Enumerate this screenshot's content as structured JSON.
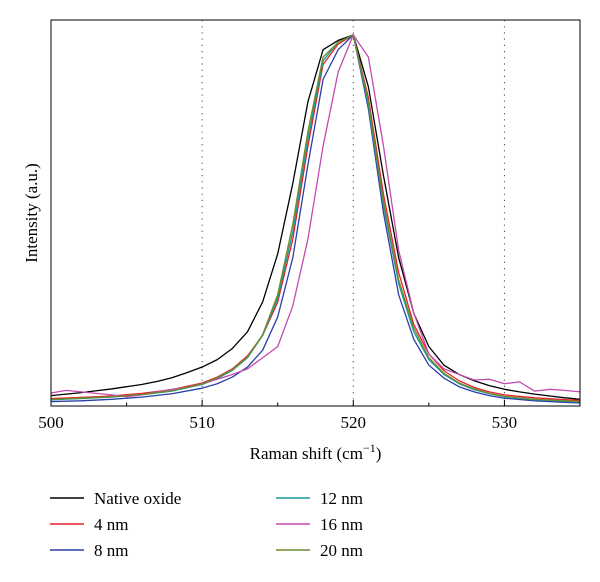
{
  "chart_data": {
    "type": "line",
    "title": "",
    "xlabel": "Raman shift (cm",
    "xlabel_sup": "−1",
    "xlabel_close": ")",
    "ylabel": "Intensity (a.u.)",
    "xlim": [
      500,
      535
    ],
    "ylim": [
      0,
      1.04
    ],
    "xticks": [
      500,
      510,
      520,
      530
    ],
    "xtick_labels": [
      "500",
      "510",
      "520",
      "530"
    ],
    "yticks_shown": false,
    "grid": "vertical dotted lines at 510, 520, 530",
    "legend_position": "below plot, two columns",
    "series": [
      {
        "name": "Native oxide",
        "color": "#000000",
        "x": [
          500,
          501,
          502,
          503,
          504,
          505,
          506,
          507,
          508,
          509,
          510,
          511,
          512,
          513,
          514,
          515,
          516,
          517,
          518,
          519,
          520,
          521,
          522,
          523,
          524,
          525,
          526,
          527,
          528,
          529,
          530,
          531,
          532,
          533,
          534,
          535
        ],
        "y": [
          0.028,
          0.032,
          0.036,
          0.041,
          0.046,
          0.052,
          0.058,
          0.066,
          0.076,
          0.09,
          0.105,
          0.125,
          0.155,
          0.2,
          0.28,
          0.41,
          0.6,
          0.82,
          0.96,
          0.985,
          1.0,
          0.86,
          0.62,
          0.4,
          0.25,
          0.16,
          0.11,
          0.085,
          0.068,
          0.055,
          0.045,
          0.038,
          0.032,
          0.027,
          0.022,
          0.018
        ]
      },
      {
        "name": "4 nm",
        "color": "#e8202a",
        "x": [
          500,
          502,
          504,
          506,
          508,
          510,
          511,
          512,
          513,
          514,
          515,
          516,
          517,
          518,
          519,
          520,
          521,
          522,
          523,
          524,
          525,
          526,
          527,
          528,
          529,
          530,
          532,
          534,
          535
        ],
        "y": [
          0.02,
          0.023,
          0.027,
          0.034,
          0.044,
          0.062,
          0.078,
          0.1,
          0.135,
          0.19,
          0.28,
          0.45,
          0.7,
          0.92,
          0.975,
          1.0,
          0.83,
          0.57,
          0.36,
          0.22,
          0.14,
          0.095,
          0.068,
          0.05,
          0.038,
          0.03,
          0.022,
          0.017,
          0.015
        ]
      },
      {
        "name": "8 nm",
        "color": "#2a3fa8",
        "x": [
          500,
          502,
          504,
          506,
          508,
          510,
          511,
          512,
          513,
          514,
          515,
          516,
          517,
          518,
          519,
          520,
          521,
          522,
          523,
          524,
          525,
          526,
          527,
          528,
          529,
          530,
          532,
          534,
          535
        ],
        "y": [
          0.012,
          0.014,
          0.018,
          0.024,
          0.033,
          0.048,
          0.06,
          0.078,
          0.105,
          0.15,
          0.24,
          0.4,
          0.65,
          0.88,
          0.96,
          1.0,
          0.8,
          0.52,
          0.3,
          0.18,
          0.11,
          0.075,
          0.052,
          0.038,
          0.028,
          0.021,
          0.014,
          0.01,
          0.008
        ]
      },
      {
        "name": "12 nm",
        "color": "#169c9c",
        "x": [
          500,
          502,
          504,
          506,
          508,
          510,
          511,
          512,
          513,
          514,
          515,
          516,
          517,
          518,
          519,
          520,
          521,
          522,
          523,
          524,
          525,
          526,
          527,
          528,
          529,
          530,
          532,
          534,
          535
        ],
        "y": [
          0.017,
          0.02,
          0.024,
          0.03,
          0.04,
          0.058,
          0.074,
          0.096,
          0.13,
          0.19,
          0.29,
          0.47,
          0.72,
          0.93,
          0.98,
          1.0,
          0.81,
          0.54,
          0.33,
          0.2,
          0.125,
          0.085,
          0.06,
          0.044,
          0.033,
          0.025,
          0.017,
          0.013,
          0.011
        ]
      },
      {
        "name": "16 nm",
        "color": "#c54ab0",
        "x": [
          500,
          501,
          502,
          503,
          504,
          505,
          506,
          507,
          508,
          509,
          510,
          511,
          512,
          513,
          514,
          515,
          516,
          517,
          518,
          519,
          520,
          521,
          522,
          523,
          524,
          525,
          526,
          527,
          528,
          529,
          530,
          531,
          532,
          533,
          534,
          535
        ],
        "y": [
          0.035,
          0.042,
          0.038,
          0.034,
          0.03,
          0.025,
          0.03,
          0.038,
          0.045,
          0.05,
          0.06,
          0.072,
          0.085,
          0.1,
          0.13,
          0.16,
          0.27,
          0.45,
          0.7,
          0.9,
          1.0,
          0.94,
          0.7,
          0.42,
          0.25,
          0.14,
          0.1,
          0.085,
          0.07,
          0.072,
          0.06,
          0.065,
          0.04,
          0.045,
          0.042,
          0.038
        ]
      },
      {
        "name": "20 nm",
        "color": "#6f8a2a",
        "x": [
          500,
          502,
          504,
          506,
          508,
          510,
          511,
          512,
          513,
          514,
          515,
          516,
          517,
          518,
          519,
          520,
          521,
          522,
          523,
          524,
          525,
          526,
          527,
          528,
          529,
          530,
          532,
          534,
          535
        ],
        "y": [
          0.018,
          0.021,
          0.025,
          0.031,
          0.041,
          0.06,
          0.076,
          0.098,
          0.132,
          0.192,
          0.3,
          0.49,
          0.74,
          0.94,
          0.98,
          1.0,
          0.82,
          0.55,
          0.34,
          0.21,
          0.13,
          0.088,
          0.062,
          0.046,
          0.034,
          0.026,
          0.018,
          0.014,
          0.012
        ]
      }
    ]
  }
}
